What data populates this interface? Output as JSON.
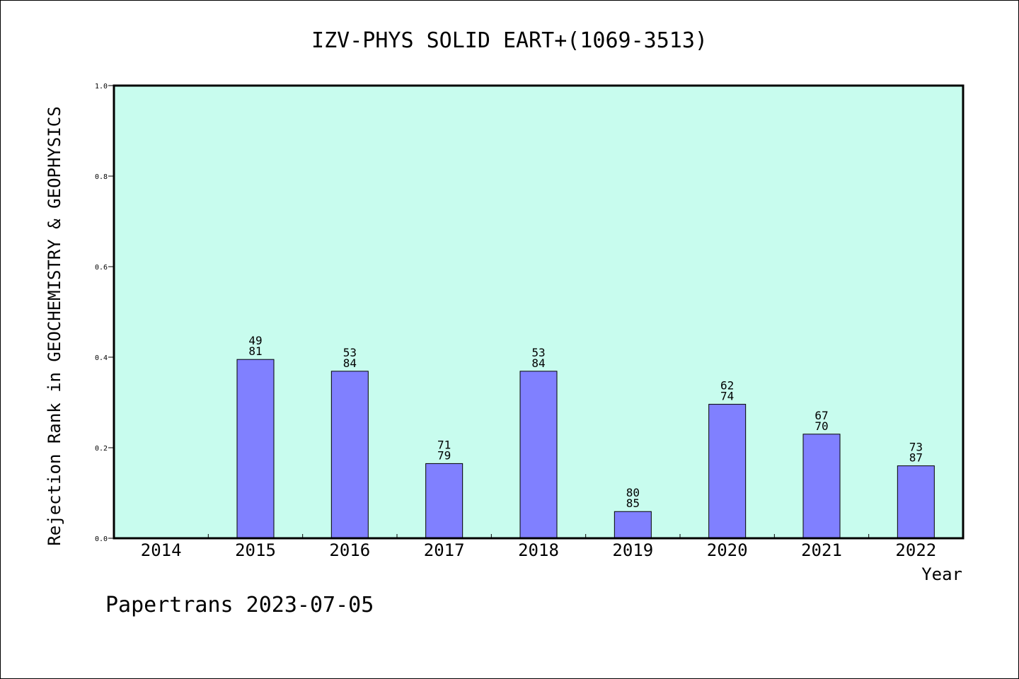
{
  "chart_data": {
    "type": "bar",
    "title": "IZV-PHYS SOLID EART+(1069-3513)",
    "xlabel": "Year",
    "ylabel": "Rejection Rank in GEOCHEMISTRY & GEOPHYSICS",
    "ylim": [
      0,
      1.0
    ],
    "yticks": [
      "0.0",
      "0.2",
      "0.4",
      "0.6",
      "0.8",
      "1.0"
    ],
    "categories": [
      "2014",
      "2015",
      "2016",
      "2017",
      "2018",
      "2019",
      "2020",
      "2021",
      "2022"
    ],
    "values": [
      null,
      0.395,
      0.369,
      0.165,
      0.369,
      0.059,
      0.296,
      0.23,
      0.16
    ],
    "label_top": [
      "",
      "49",
      "53",
      "71",
      "53",
      "80",
      "62",
      "67",
      "73"
    ],
    "label_bottom": [
      "",
      "81",
      "84",
      "79",
      "84",
      "85",
      "74",
      "70",
      "87"
    ],
    "grid": false,
    "colors": {
      "plot_bg": "#c8fcee",
      "bar_fill": "#8080ff",
      "bar_stroke": "#000000"
    }
  },
  "footer": {
    "text": "Papertrans 2023-07-05"
  }
}
